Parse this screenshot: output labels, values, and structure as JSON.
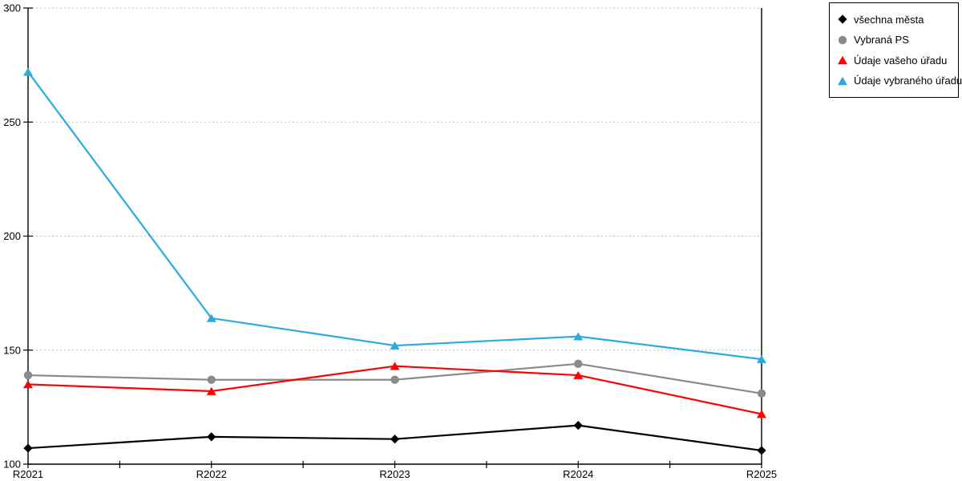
{
  "chart_data": {
    "type": "line",
    "title": "",
    "xlabel": "",
    "ylabel": "",
    "categories": [
      "R2021",
      "R2022",
      "R2023",
      "R2024",
      "R2025"
    ],
    "series": [
      {
        "name": "všechna města",
        "marker": "diamond",
        "color": "#000000",
        "values": [
          107,
          112,
          111,
          117,
          106
        ]
      },
      {
        "name": "Vybraná PS",
        "marker": "circle",
        "color": "#8a8a8a",
        "values": [
          139,
          137,
          137,
          144,
          131
        ]
      },
      {
        "name": "Údaje vašeho úřadu",
        "marker": "triangle",
        "color": "#ff0000",
        "values": [
          135,
          132,
          143,
          139,
          122
        ]
      },
      {
        "name": "Údaje vybraného úřadu",
        "marker": "triangle",
        "color": "#29abe2",
        "values": [
          272,
          164,
          152,
          156,
          146
        ]
      }
    ],
    "ylim": [
      100,
      300
    ],
    "yticks": [
      100,
      150,
      200,
      250,
      300
    ],
    "ytick_labels": [
      "100",
      "150",
      "200",
      "250",
      "300"
    ],
    "grid": "horizontal-dotted",
    "grid_color": "#bdbdbd",
    "axis_color": "#000000",
    "background_color": "#ffffff",
    "legend_position": "top-right",
    "legend_border_color": "#000000"
  }
}
